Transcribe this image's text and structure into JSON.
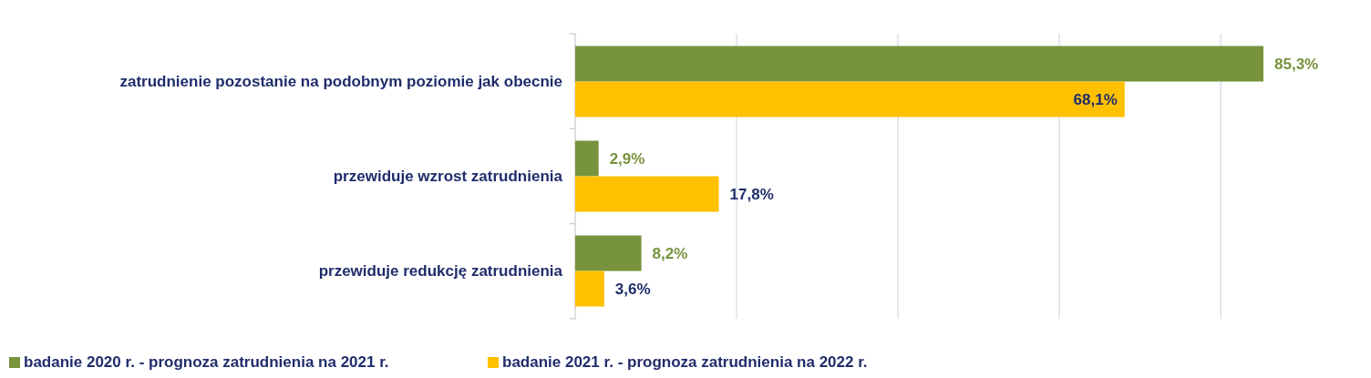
{
  "chart_data": {
    "type": "bar",
    "orientation": "horizontal",
    "categories": [
      "zatrudnienie pozostanie na podobnym poziomie jak obecnie",
      "przewiduje wzrost zatrudnienia",
      "przewiduje redukcję  zatrudnienia"
    ],
    "series": [
      {
        "name": "badanie 2020 r. - prognoza zatrudnienia na 2021 r.",
        "color": "#77933c",
        "values": [
          85.3,
          2.9,
          8.2
        ],
        "value_labels": [
          "85,3%",
          "2,9%",
          "8,2%"
        ]
      },
      {
        "name": "badanie 2021 r. - prognoza zatrudnienia na 2022 r.",
        "color": "#ffc000",
        "values": [
          68.1,
          17.8,
          3.6
        ],
        "value_labels": [
          "68,1%",
          "17,8%",
          "3,6%"
        ]
      }
    ],
    "xticks": [
      {
        "value": 0,
        "label": null
      },
      {
        "value": 20,
        "label": null
      },
      {
        "value": 40,
        "label": null
      },
      {
        "value": 60,
        "label": null
      },
      {
        "value": 80,
        "label": null
      }
    ],
    "grid": "x",
    "tick_labels": "y",
    "legend": "bottom"
  }
}
